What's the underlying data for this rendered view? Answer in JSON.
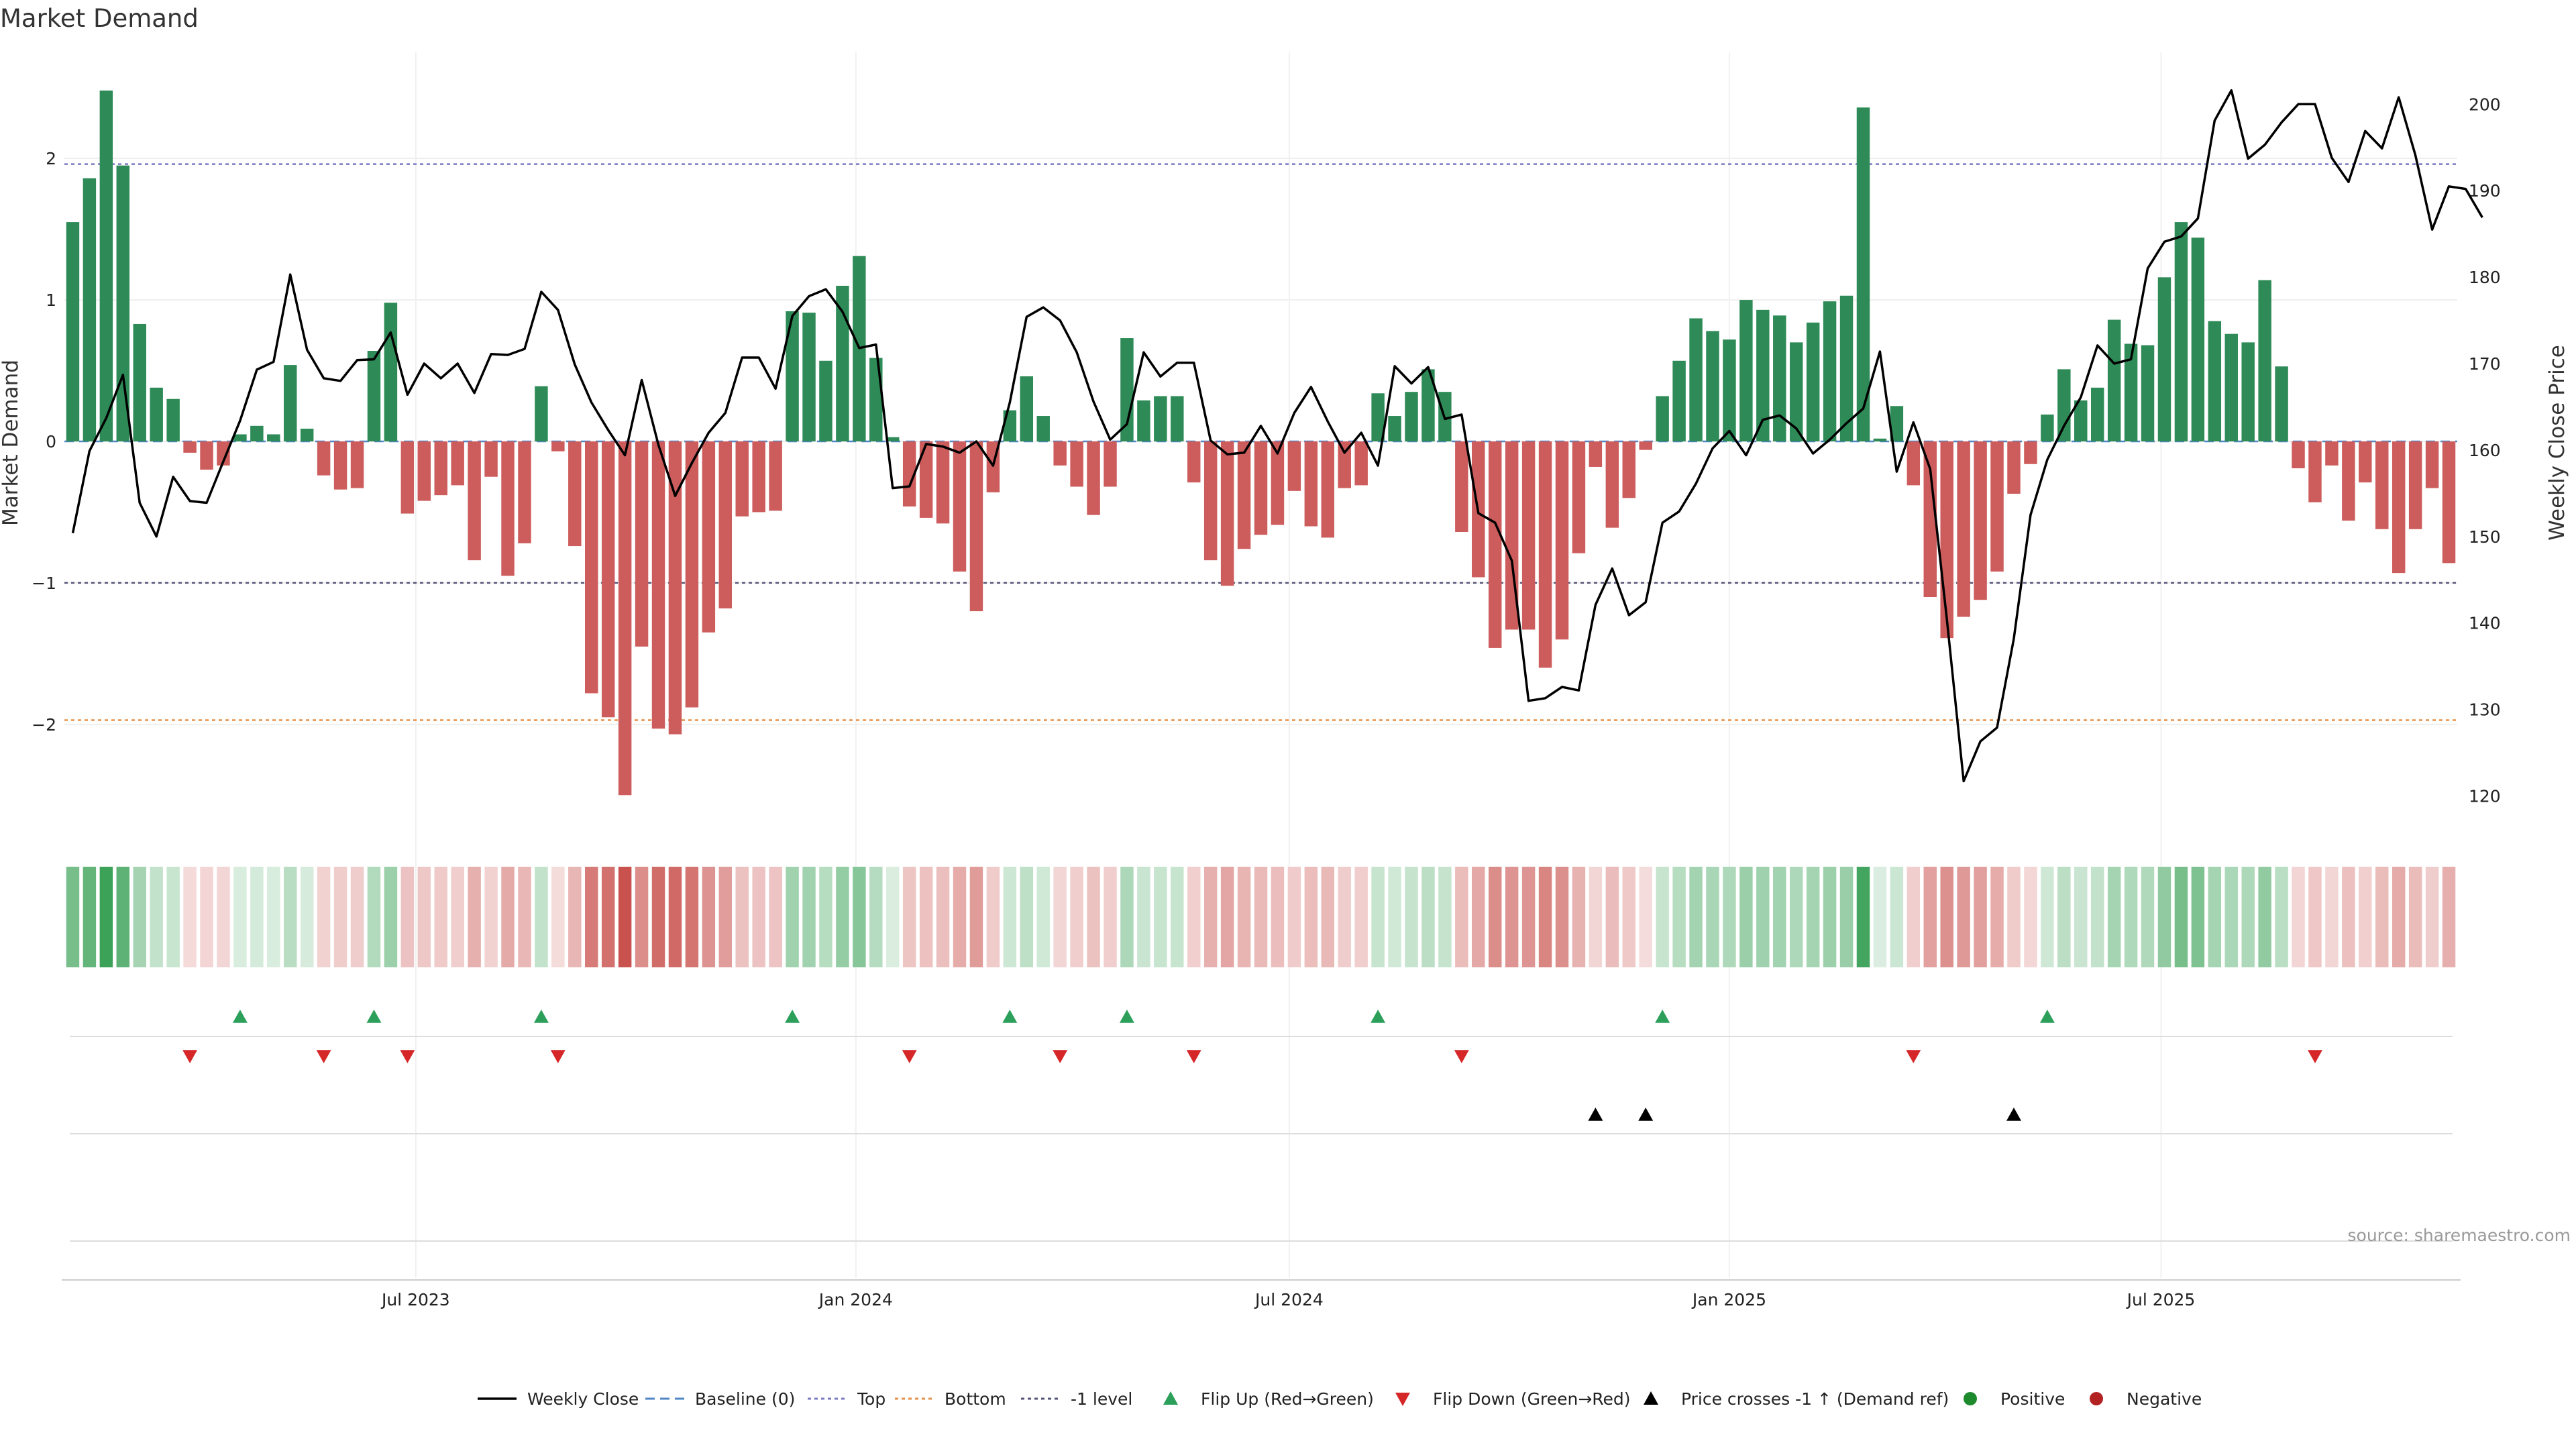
{
  "chart_data": {
    "type": "bar",
    "title": "Market Demand",
    "ylabel_left": "Market Demand",
    "ylabel_right": "Weekly Close Price",
    "ylim_left": [
      -2.75,
      2.75
    ],
    "ylim_right": [
      116,
      206
    ],
    "yticks_left": [
      2,
      1,
      0,
      -1,
      -2
    ],
    "ytick_labels_left": [
      "2",
      "1",
      "0",
      "−1",
      "−2"
    ],
    "yticks_right": [
      200,
      190,
      180,
      170,
      160,
      150,
      140,
      130,
      120
    ],
    "ytick_labels_right": [
      "200",
      "190",
      "180",
      "170",
      "160",
      "150",
      "140",
      "130",
      "120"
    ],
    "x_ticks": [
      {
        "label": "Jul 2023",
        "week": 20.5
      },
      {
        "label": "Jan 2024",
        "week": 46.8
      },
      {
        "label": "Jul 2024",
        "week": 72.7
      },
      {
        "label": "Jan 2025",
        "week": 99.0
      },
      {
        "label": "Jul 2025",
        "week": 124.8
      }
    ],
    "reference_lines": [
      {
        "name": "Top",
        "value": 1.96,
        "color": "#7b7bc4"
      },
      {
        "name": "Bottom",
        "value": -1.97,
        "color": "#e6914a"
      },
      {
        "name": "-1 level",
        "value": -1.0,
        "color": "#555577"
      },
      {
        "name": "Baseline (0)",
        "value": 0,
        "color": "#4f86c6"
      }
    ],
    "demand": [
      1.55,
      1.86,
      2.48,
      1.95,
      0.83,
      0.38,
      0.3,
      -0.08,
      -0.2,
      -0.17,
      0.05,
      0.11,
      0.05,
      0.54,
      0.09,
      -0.24,
      -0.34,
      -0.33,
      0.64,
      0.98,
      -0.51,
      -0.42,
      -0.38,
      -0.31,
      -0.84,
      -0.25,
      -0.95,
      -0.72,
      0.39,
      -0.07,
      -0.74,
      -1.78,
      -1.95,
      -2.5,
      -1.45,
      -2.03,
      -2.07,
      -1.88,
      -1.35,
      -1.18,
      -0.53,
      -0.5,
      -0.49,
      0.92,
      0.91,
      0.57,
      1.1,
      1.31,
      0.59,
      0.03,
      -0.46,
      -0.54,
      -0.58,
      -0.92,
      -1.2,
      -0.36,
      0.22,
      0.46,
      0.18,
      -0.17,
      -0.32,
      -0.52,
      -0.32,
      0.73,
      0.29,
      0.32,
      0.32,
      -0.29,
      -0.84,
      -1.02,
      -0.76,
      -0.66,
      -0.59,
      -0.35,
      -0.6,
      -0.68,
      -0.33,
      -0.31,
      0.34,
      0.18,
      0.35,
      0.51,
      0.35,
      -0.64,
      -0.96,
      -1.46,
      -1.33,
      -1.33,
      -1.6,
      -1.4,
      -0.79,
      -0.18,
      -0.61,
      -0.4,
      -0.06,
      0.32,
      0.57,
      0.87,
      0.78,
      0.72,
      1.0,
      0.93,
      0.89,
      0.7,
      0.84,
      0.99,
      1.03,
      2.36,
      0.02,
      0.25,
      -0.31,
      -1.1,
      -1.39,
      -1.24,
      -1.12,
      -0.92,
      -0.37,
      -0.16,
      0.19,
      0.51,
      0.29,
      0.38,
      0.86,
      0.69,
      0.68,
      1.16,
      1.55,
      1.44,
      0.85,
      0.76,
      0.7,
      1.14,
      0.53,
      -0.19,
      -0.43,
      -0.17,
      -0.56,
      -0.29,
      -0.62,
      -0.93,
      -0.62,
      -0.33,
      -0.86
    ],
    "price": [
      150.4,
      159.9,
      163.7,
      168.7,
      153.9,
      150.0,
      156.9,
      154.1,
      153.9,
      158.7,
      163.4,
      169.3,
      170.2,
      180.3,
      171.6,
      168.3,
      168.0,
      170.4,
      170.5,
      173.6,
      166.4,
      170.0,
      168.3,
      170.0,
      166.6,
      171.1,
      171.0,
      171.7,
      178.3,
      176.2,
      169.9,
      165.5,
      162.3,
      159.4,
      168.1,
      160.6,
      154.7,
      158.5,
      162.0,
      164.3,
      170.7,
      170.7,
      167.1,
      175.5,
      177.8,
      178.6,
      176.0,
      171.8,
      172.2,
      155.6,
      155.8,
      160.7,
      160.4,
      159.7,
      161.0,
      158.2,
      165.5,
      175.4,
      176.5,
      175.0,
      171.3,
      165.6,
      161.2,
      163.0,
      171.3,
      168.5,
      170.1,
      170.1,
      161.1,
      159.5,
      159.7,
      162.8,
      159.6,
      164.3,
      167.3,
      163.3,
      159.7,
      162.0,
      158.2,
      169.7,
      167.7,
      169.6,
      163.6,
      164.1,
      152.7,
      151.6,
      147.2,
      131.0,
      131.3,
      132.6,
      132.2,
      142.1,
      146.3,
      140.9,
      142.4,
      151.6,
      152.9,
      156.1,
      160.2,
      162.2,
      159.4,
      163.5,
      164.0,
      162.5,
      159.6,
      161.2,
      163.1,
      164.8,
      171.4,
      157.5,
      163.2,
      157.8,
      140.4,
      121.7,
      126.3,
      127.9,
      138.2,
      152.5,
      158.9,
      162.8,
      166.1,
      172.1,
      170.0,
      170.5,
      181.0,
      184.1,
      184.7,
      186.8,
      198.1,
      201.6,
      193.7,
      195.3,
      197.9,
      200.0,
      200.0,
      193.8,
      191.0,
      196.9,
      194.9,
      200.8,
      194.1,
      185.5,
      190.5,
      190.2,
      186.9
    ],
    "flip_up_weeks": [
      10,
      18,
      28,
      43,
      56,
      63,
      78,
      95,
      118
    ],
    "flip_down_weeks": [
      7,
      15,
      20,
      29,
      50,
      59,
      67,
      83,
      110,
      134
    ],
    "cross_weeks": [
      91,
      94,
      116
    ],
    "colors": {
      "positive": "#2e8b57",
      "negative": "#cd5c5c",
      "price_line": "#000000",
      "flip_up": "#2ca05a",
      "flip_down": "#d62728",
      "cross": "#000000",
      "dot_positive": "#1e8a2e",
      "dot_negative": "#b22222"
    },
    "legend": [
      {
        "key": "weekly",
        "label": "Weekly Close"
      },
      {
        "key": "baseline",
        "label": "Baseline (0)"
      },
      {
        "key": "top",
        "label": "Top"
      },
      {
        "key": "bottom",
        "label": "Bottom"
      },
      {
        "key": "minus1",
        "label": "-1 level"
      },
      {
        "key": "flipup",
        "label": "Flip Up (Red→Green)"
      },
      {
        "key": "flipdown",
        "label": "Flip Down (Green→Red)"
      },
      {
        "key": "cross",
        "label": "Price crosses -1 ↑ (Demand ref)"
      },
      {
        "key": "positive",
        "label": "Positive"
      },
      {
        "key": "negative",
        "label": "Negative"
      }
    ],
    "source": "source: sharemaestro.com"
  }
}
